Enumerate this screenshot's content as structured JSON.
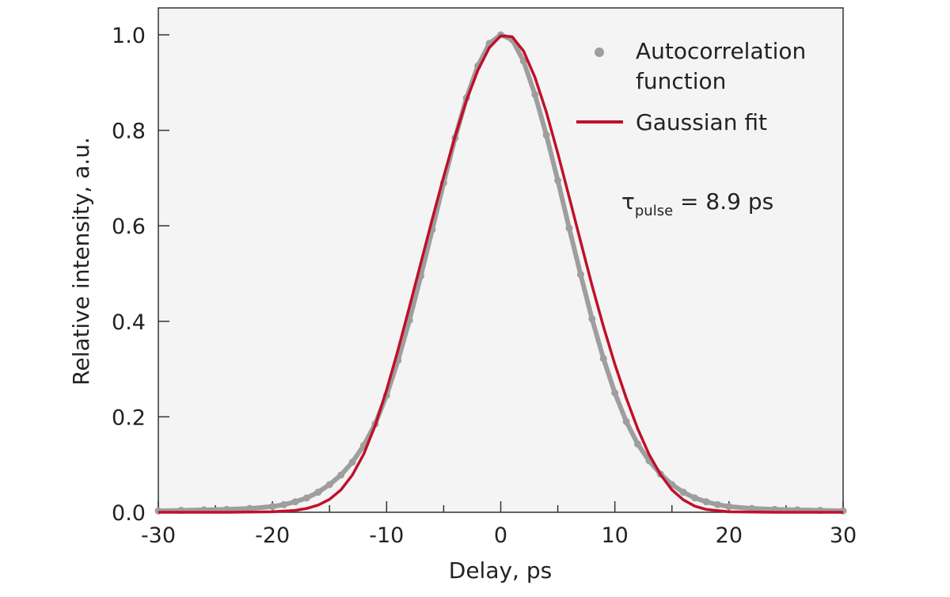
{
  "chart_data": {
    "type": "scatter",
    "title": "",
    "xlabel": "Delay, ps",
    "ylabel": "Relative intensity, a.u.",
    "xlim": [
      -30,
      30
    ],
    "ylim": [
      0,
      1.0
    ],
    "x_ticks": [
      -30,
      -20,
      -10,
      0,
      10,
      20,
      30
    ],
    "x_tick_labels": [
      "-30",
      "-20",
      "-10",
      "0",
      "10",
      "20",
      "30"
    ],
    "x_minor_step": 5,
    "y_ticks": [
      0.0,
      0.2,
      0.4,
      0.6,
      0.8,
      1.0
    ],
    "y_tick_labels": [
      "0.0",
      "0.2",
      "0.4",
      "0.6",
      "0.8",
      "1.0"
    ],
    "grid": false,
    "legend_position": "top-right",
    "background_color": "#f4f4f4",
    "series": [
      {
        "name": "Autocorrelation function",
        "kind": "scatter",
        "color": "#9e9e9e",
        "x": [
          -30,
          -28,
          -26,
          -24,
          -22,
          -20,
          -19,
          -18,
          -17,
          -16,
          -15,
          -14,
          -13,
          -12,
          -11,
          -10,
          -9,
          -8,
          -7,
          -6,
          -5,
          -4,
          -3,
          -2,
          -1,
          0,
          1,
          2,
          3,
          4,
          5,
          6,
          7,
          8,
          9,
          10,
          11,
          12,
          13,
          14,
          15,
          16,
          17,
          18,
          19,
          20,
          22,
          24,
          26,
          28,
          30
        ],
        "y": [
          0.003,
          0.004,
          0.005,
          0.006,
          0.008,
          0.012,
          0.016,
          0.022,
          0.03,
          0.042,
          0.058,
          0.078,
          0.105,
          0.14,
          0.185,
          0.245,
          0.318,
          0.402,
          0.495,
          0.592,
          0.69,
          0.784,
          0.868,
          0.935,
          0.982,
          1.0,
          0.99,
          0.945,
          0.875,
          0.79,
          0.695,
          0.595,
          0.498,
          0.405,
          0.322,
          0.25,
          0.19,
          0.143,
          0.108,
          0.08,
          0.058,
          0.042,
          0.03,
          0.022,
          0.016,
          0.012,
          0.008,
          0.006,
          0.005,
          0.004,
          0.003
        ]
      },
      {
        "name": "Gaussian fit",
        "kind": "line",
        "color": "#c0102a",
        "x": [
          -30,
          -24,
          -20,
          -18,
          -17,
          -16,
          -15,
          -14,
          -13,
          -12,
          -11,
          -10,
          -9,
          -8,
          -7,
          -6,
          -5,
          -4,
          -3,
          -2,
          -1,
          0,
          1,
          2,
          3,
          4,
          5,
          6,
          7,
          8,
          9,
          10,
          11,
          12,
          13,
          14,
          15,
          16,
          17,
          18,
          20,
          24,
          30
        ],
        "y": [
          0.0,
          0.0,
          0.001,
          0.004,
          0.008,
          0.015,
          0.027,
          0.047,
          0.078,
          0.122,
          0.182,
          0.256,
          0.34,
          0.43,
          0.522,
          0.614,
          0.703,
          0.787,
          0.863,
          0.926,
          0.973,
          0.998,
          0.996,
          0.966,
          0.911,
          0.838,
          0.752,
          0.66,
          0.567,
          0.475,
          0.389,
          0.31,
          0.239,
          0.175,
          0.121,
          0.079,
          0.047,
          0.026,
          0.013,
          0.006,
          0.001,
          0.0,
          0.0
        ]
      }
    ],
    "annotation": {
      "symbol": "τ",
      "subscript": "pulse",
      "text": " = 8.9 ps"
    }
  }
}
